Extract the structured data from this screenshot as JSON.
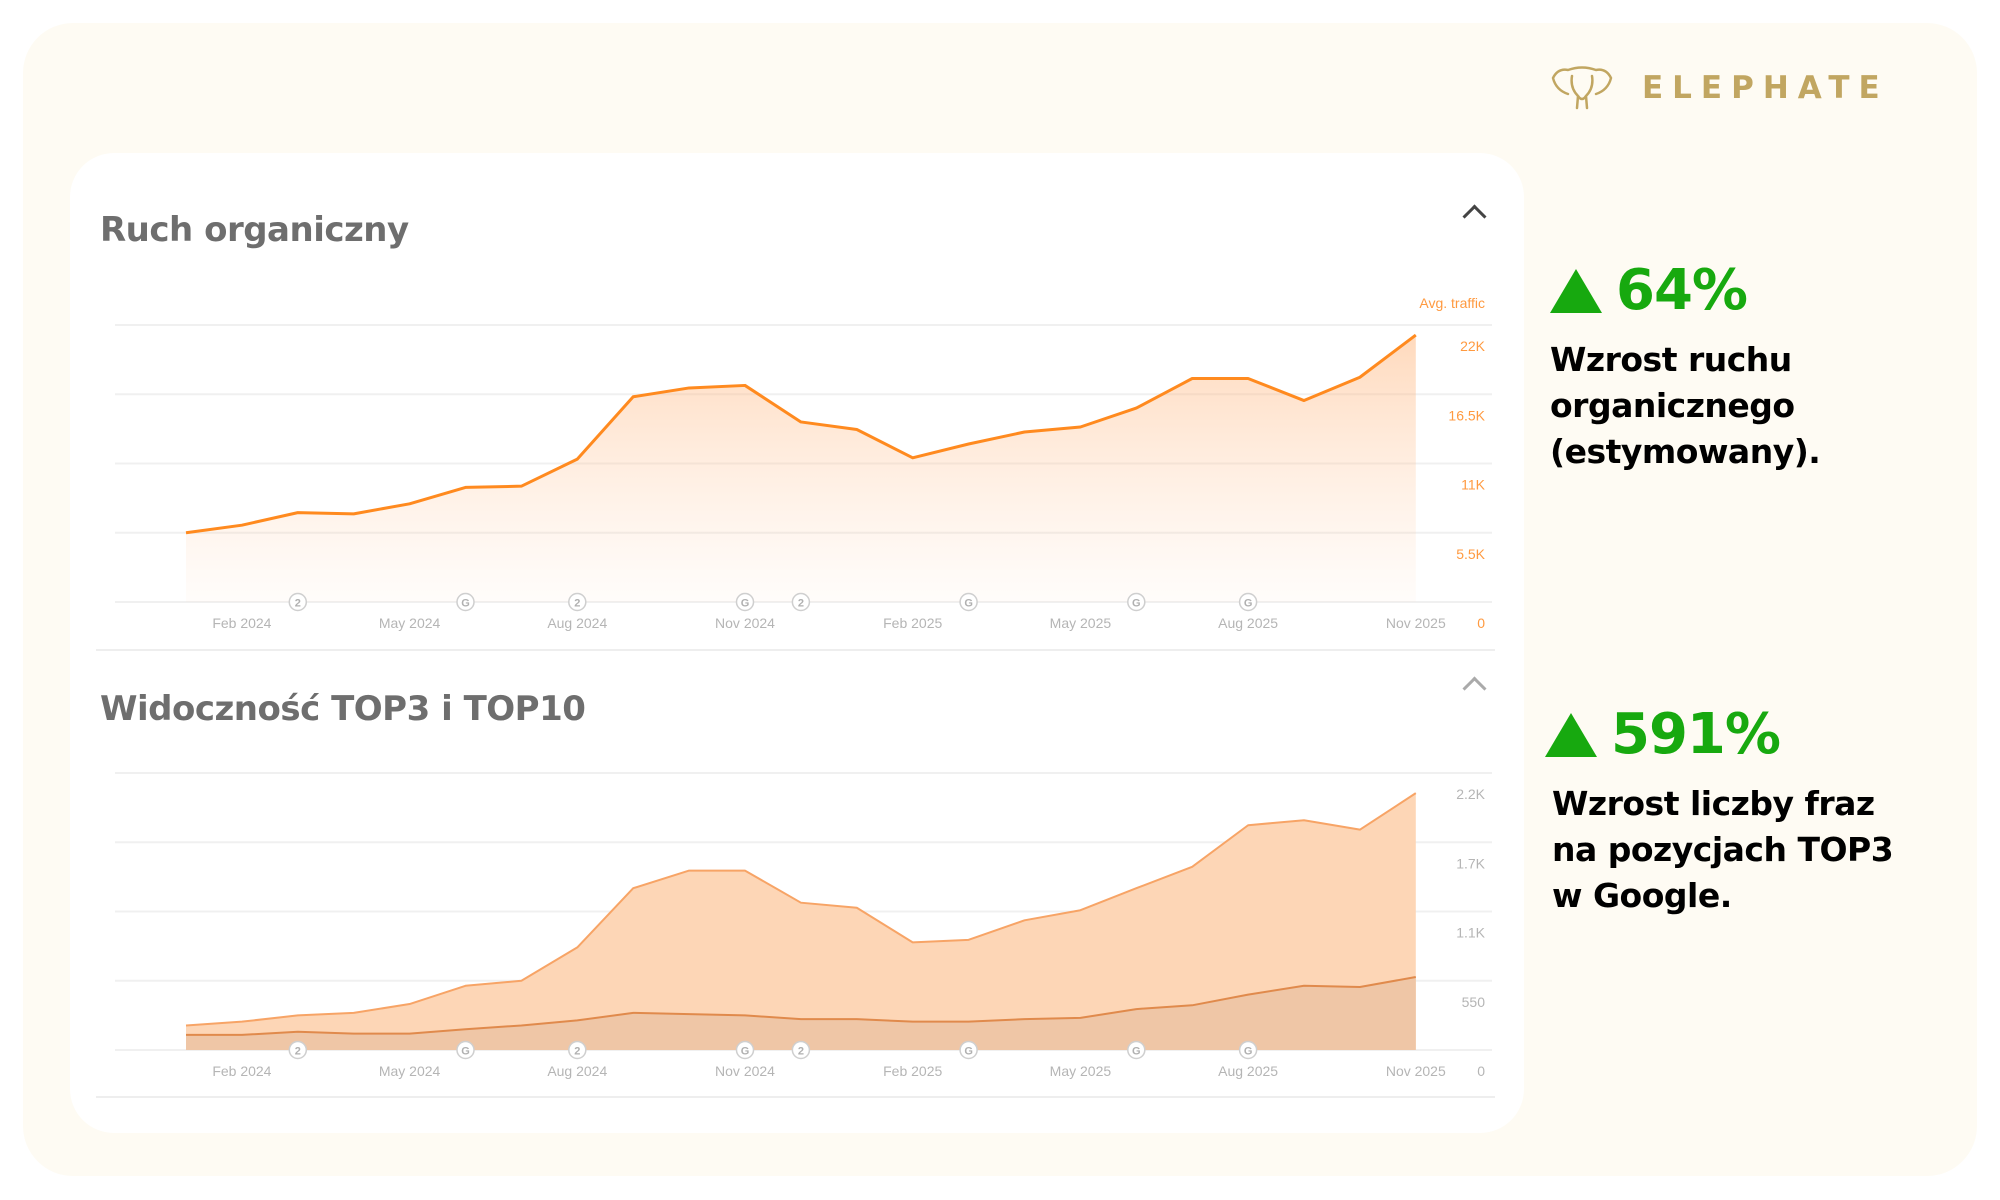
{
  "brand": {
    "name": "ELEPHATE",
    "color": "#c1a661"
  },
  "stats": [
    {
      "value": "64%",
      "lines": [
        "Wzrost ruchu",
        "organicznego",
        "(estymowany)."
      ]
    },
    {
      "value": "591%",
      "lines": [
        "Wzrost liczby fraz",
        "na pozycjach TOP3",
        "w Google."
      ]
    }
  ],
  "chart_data": [
    {
      "type": "area",
      "title": "Ruch organiczny",
      "ylabel": "Avg. traffic",
      "x": [
        "Jan 2024",
        "Feb 2024",
        "Mar 2024",
        "Apr 2024",
        "May 2024",
        "Jun 2024",
        "Jul 2024",
        "Aug 2024",
        "Sep 2024",
        "Oct 2024",
        "Nov 2024",
        "Dec 2024",
        "Jan 2025",
        "Feb 2025",
        "Mar 2025",
        "Apr 2025",
        "May 2025",
        "Jun 2025",
        "Jul 2025",
        "Aug 2025",
        "Sep 2025",
        "Oct 2025",
        "Nov 2025"
      ],
      "xticks": [
        "Feb 2024",
        "May 2024",
        "Aug 2024",
        "Nov 2024",
        "Feb 2025",
        "May 2025",
        "Aug 2025",
        "Nov 2025"
      ],
      "xtick_index": [
        1,
        4,
        7,
        10,
        13,
        16,
        19,
        22
      ],
      "yticks": [
        "0",
        "5.5K",
        "11K",
        "16.5K",
        "22K"
      ],
      "ytick_values": [
        0,
        5500,
        11000,
        16500,
        22000
      ],
      "ylim": [
        0,
        22000
      ],
      "series": [
        {
          "name": "Avg. traffic",
          "color": "#ff8a1f",
          "values": [
            5500,
            6100,
            7100,
            7000,
            7800,
            9100,
            9200,
            11350,
            16300,
            17000,
            17200,
            14300,
            13700,
            11450,
            12550,
            13500,
            13900,
            15400,
            17750,
            17750,
            16000,
            17850,
            21200
          ]
        }
      ],
      "annotations": [
        {
          "index": 2,
          "label": "2"
        },
        {
          "index": 5,
          "label": "G"
        },
        {
          "index": 7,
          "label": "2"
        },
        {
          "index": 10,
          "label": "G"
        },
        {
          "index": 11,
          "label": "2"
        },
        {
          "index": 14,
          "label": "G"
        },
        {
          "index": 17,
          "label": "G"
        },
        {
          "index": 19,
          "label": "G"
        }
      ]
    },
    {
      "type": "area",
      "title": "Widoczność TOP3 i TOP10",
      "x": [
        "Jan 2024",
        "Feb 2024",
        "Mar 2024",
        "Apr 2024",
        "May 2024",
        "Jun 2024",
        "Jul 2024",
        "Aug 2024",
        "Sep 2024",
        "Oct 2024",
        "Nov 2024",
        "Dec 2024",
        "Jan 2025",
        "Feb 2025",
        "Mar 2025",
        "Apr 2025",
        "May 2025",
        "Jun 2025",
        "Jul 2025",
        "Aug 2025",
        "Sep 2025",
        "Oct 2025",
        "Nov 2025"
      ],
      "xticks": [
        "Feb 2024",
        "May 2024",
        "Aug 2024",
        "Nov 2024",
        "Feb 2025",
        "May 2025",
        "Aug 2025",
        "Nov 2025"
      ],
      "xtick_index": [
        1,
        4,
        7,
        10,
        13,
        16,
        19,
        22
      ],
      "yticks": [
        "0",
        "550",
        "1.1K",
        "1.7K",
        "2.2K"
      ],
      "ytick_values": [
        0,
        550,
        1100,
        1650,
        2200
      ],
      "ylim": [
        0,
        2200
      ],
      "series": [
        {
          "name": "TOP10",
          "color": "#f7a466",
          "values": [
            195,
            225,
            275,
            295,
            365,
            510,
            550,
            815,
            1285,
            1425,
            1425,
            1170,
            1130,
            855,
            875,
            1030,
            1110,
            1285,
            1455,
            1785,
            1825,
            1750,
            2040
          ]
        },
        {
          "name": "TOP3",
          "color": "#e08a4c",
          "values": [
            120,
            120,
            145,
            130,
            130,
            165,
            195,
            235,
            295,
            285,
            275,
            245,
            245,
            225,
            225,
            245,
            255,
            325,
            355,
            440,
            510,
            500,
            580
          ]
        }
      ],
      "annotations": [
        {
          "index": 2,
          "label": "2"
        },
        {
          "index": 5,
          "label": "G"
        },
        {
          "index": 7,
          "label": "2"
        },
        {
          "index": 10,
          "label": "G"
        },
        {
          "index": 11,
          "label": "2"
        },
        {
          "index": 14,
          "label": "G"
        },
        {
          "index": 17,
          "label": "G"
        },
        {
          "index": 19,
          "label": "G"
        }
      ]
    }
  ]
}
